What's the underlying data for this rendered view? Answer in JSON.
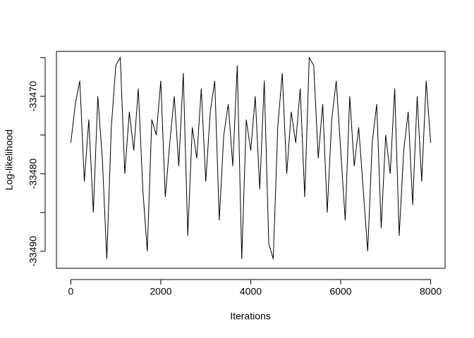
{
  "chart_data": {
    "type": "line",
    "x_label": "Iterations",
    "y_label": "Log-likelihood",
    "x": [
      0,
      100,
      200,
      300,
      400,
      500,
      600,
      700,
      800,
      900,
      1000,
      1100,
      1200,
      1300,
      1400,
      1500,
      1600,
      1700,
      1800,
      1900,
      2000,
      2100,
      2200,
      2300,
      2400,
      2500,
      2600,
      2700,
      2800,
      2900,
      3000,
      3100,
      3200,
      3300,
      3400,
      3500,
      3600,
      3700,
      3800,
      3900,
      4000,
      4100,
      4200,
      4300,
      4400,
      4500,
      4600,
      4700,
      4800,
      4900,
      5000,
      5100,
      5200,
      5300,
      5400,
      5500,
      5600,
      5700,
      5800,
      5900,
      6000,
      6100,
      6200,
      6300,
      6400,
      6500,
      6600,
      6700,
      6800,
      6900,
      7000,
      7100,
      7200,
      7300,
      7400,
      7500,
      7600,
      7700,
      7800,
      7900,
      8000
    ],
    "series": [
      {
        "name": "Log-likelihood",
        "color": "#000000",
        "values": [
          -33476,
          -33471,
          -33468,
          -33481,
          -33473,
          -33485,
          -33470,
          -33478,
          -33491,
          -33474,
          -33466,
          -33465,
          -33480,
          -33472,
          -33477,
          -33469,
          -33482,
          -33490,
          -33473,
          -33475,
          -33468,
          -33483,
          -33476,
          -33470,
          -33479,
          -33467,
          -33488,
          -33474,
          -33478,
          -33469,
          -33481,
          -33472,
          -33468,
          -33486,
          -33475,
          -33471,
          -33479,
          -33466,
          -33491,
          -33473,
          -33477,
          -33470,
          -33482,
          -33468,
          -33489,
          -33491,
          -33474,
          -33467,
          -33480,
          -33472,
          -33476,
          -33469,
          -33483,
          -33465,
          -33466,
          -33478,
          -33471,
          -33485,
          -33473,
          -33468,
          -33477,
          -33486,
          -33470,
          -33479,
          -33474,
          -33482,
          -33490,
          -33476,
          -33471,
          -33487,
          -33475,
          -33480,
          -33469,
          -33488,
          -33477,
          -33472,
          -33484,
          -33470,
          -33481,
          -33468,
          -33476
        ]
      }
    ],
    "xlim": [
      -320,
      8320
    ],
    "xticks": [
      0,
      2000,
      4000,
      6000,
      8000
    ],
    "ylim": [
      -33492.2,
      -33464.2
    ],
    "yticks": [
      -33490,
      -33480,
      -33470
    ],
    "yminor_ticks": [
      -33485,
      -33475,
      -33465
    ]
  }
}
